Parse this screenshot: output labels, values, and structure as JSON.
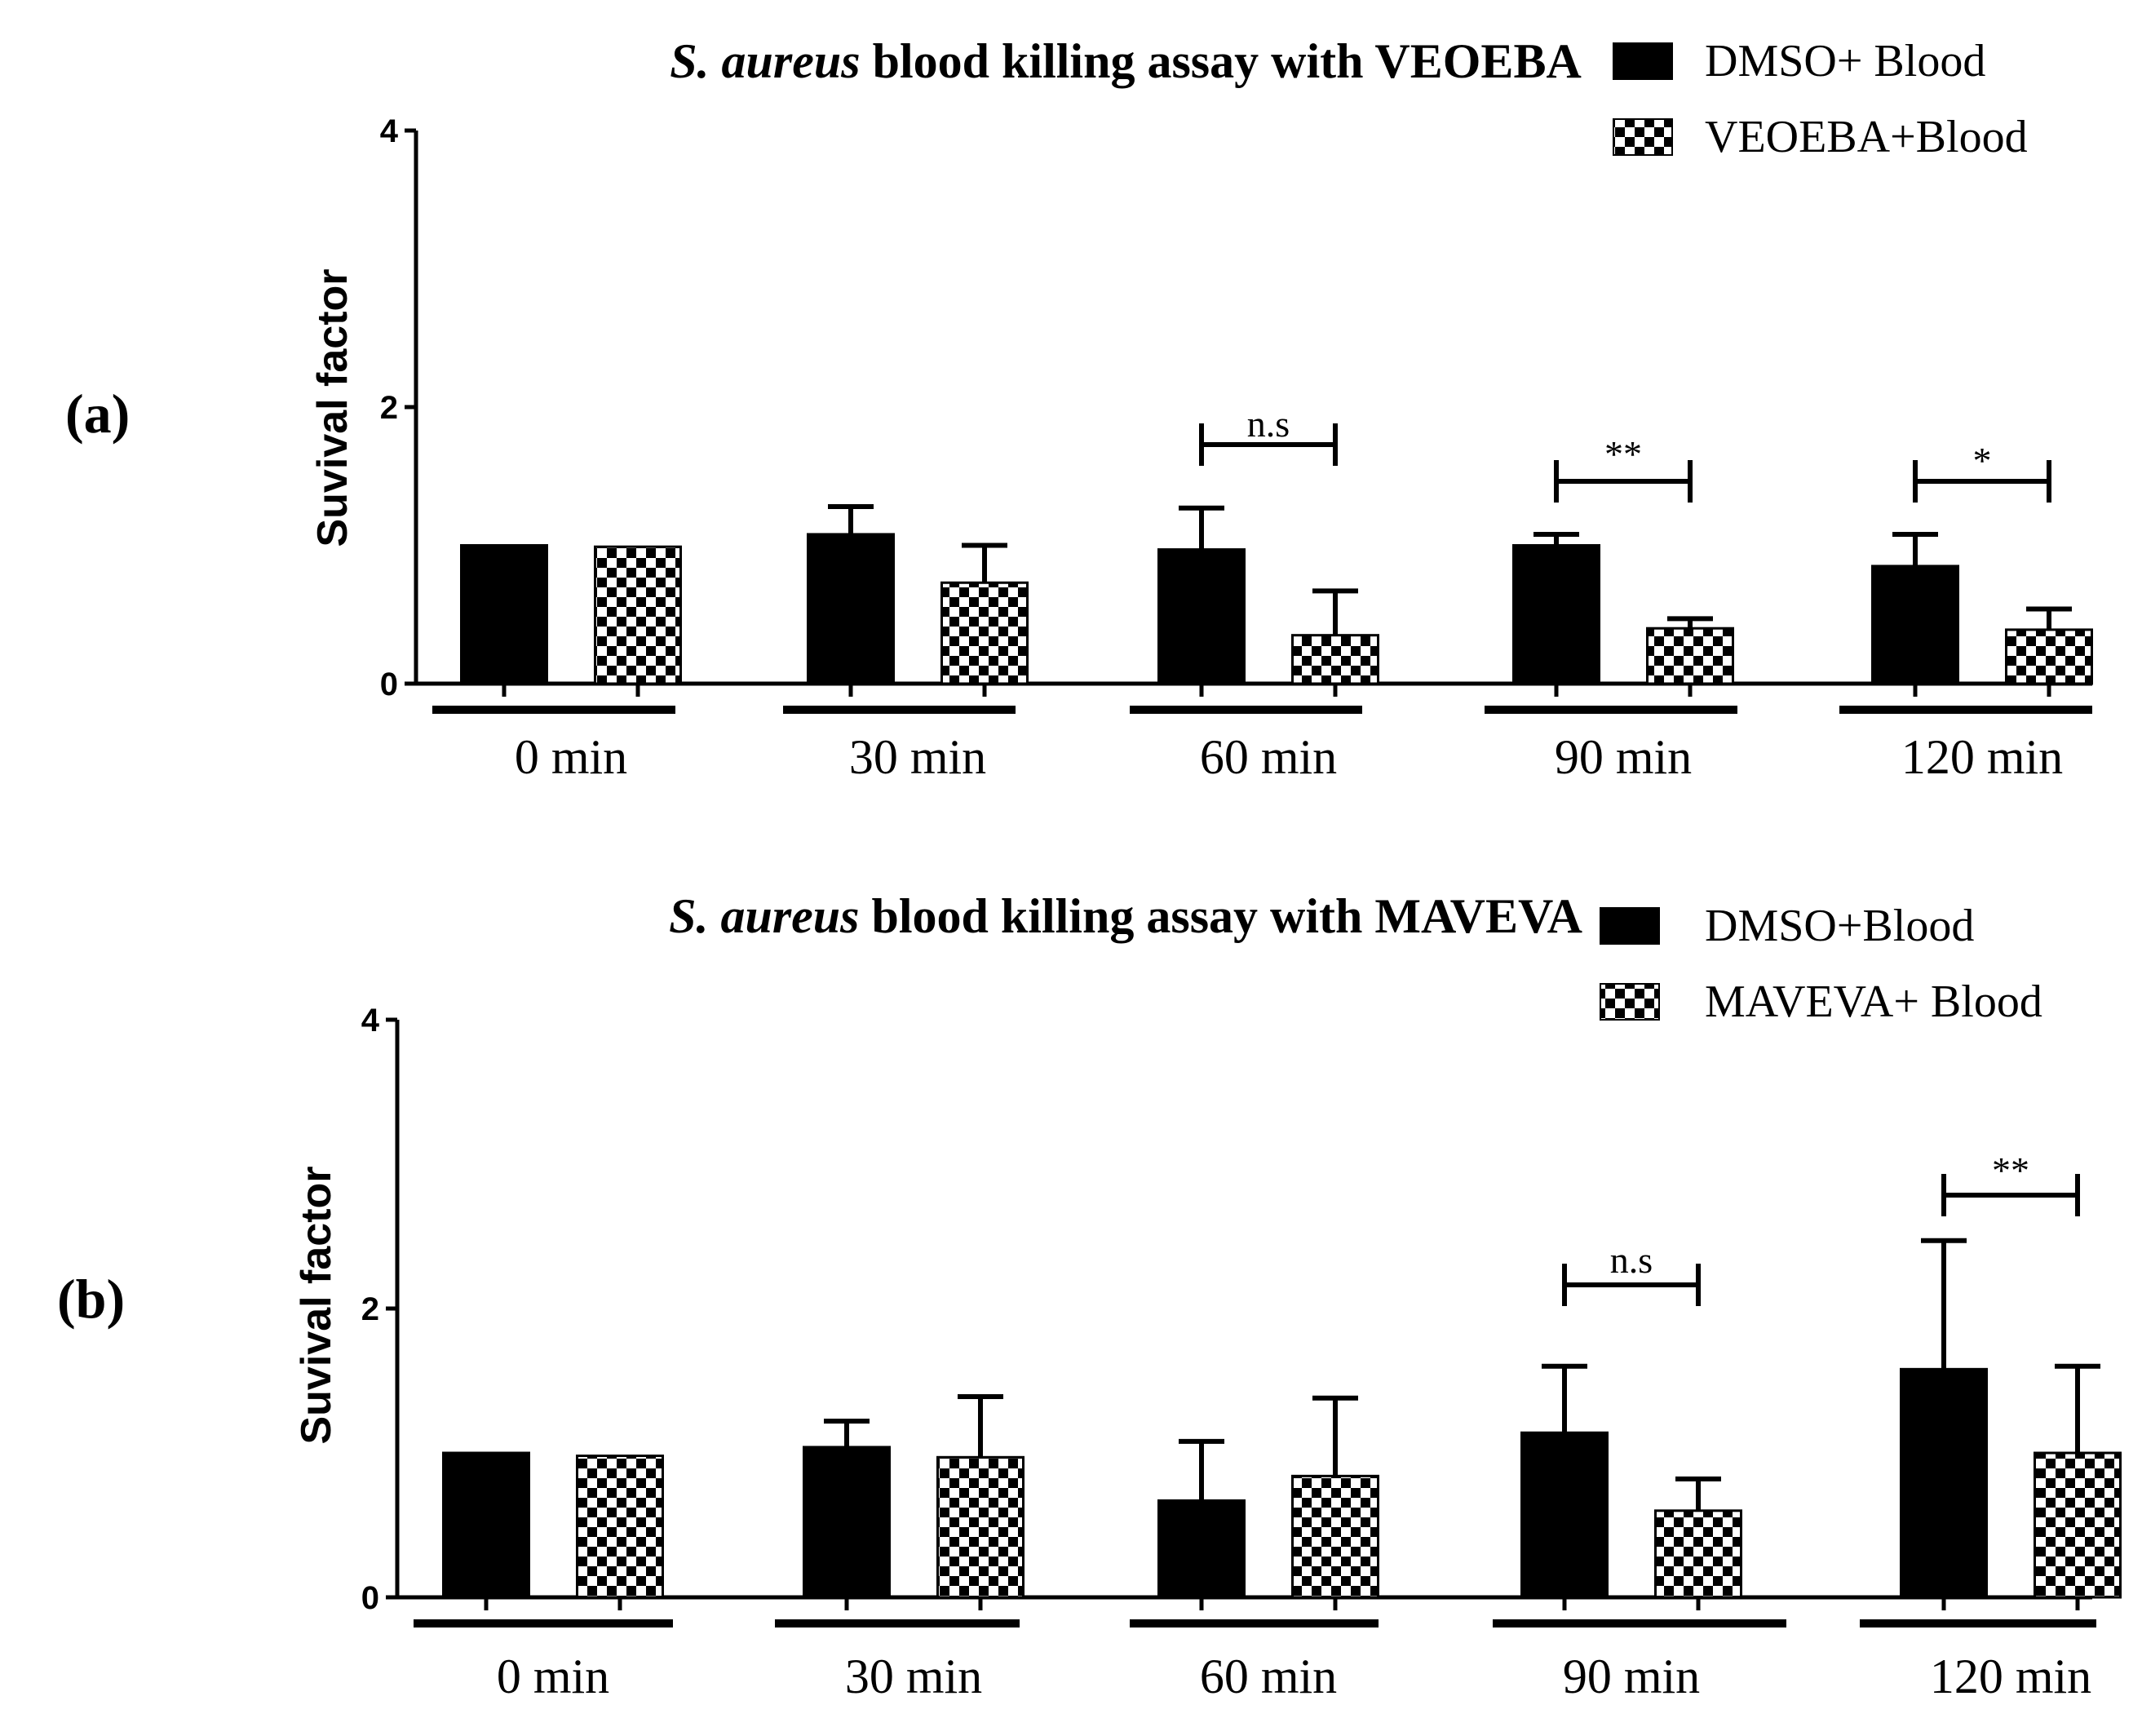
{
  "chart_data": [
    {
      "type": "bar",
      "panel_label_prefix": "(",
      "panel_label_letter": "a",
      "panel_label_suffix": ")",
      "title_italic": "S. aureus",
      "title_rest": " blood killing assay  with VEOEBA",
      "ylabel": "Suvival factor",
      "xlabel": "",
      "ylim": [
        0,
        4
      ],
      "yticks": [
        "0",
        "2",
        "4"
      ],
      "categories": [
        "0 min",
        "30 min",
        "60 min",
        "90 min",
        "120 min"
      ],
      "series": [
        {
          "name": "DMSO+ Blood",
          "pattern": "solid",
          "values": [
            1.0,
            1.08,
            0.97,
            1.0,
            0.85
          ],
          "errors": [
            0.0,
            0.2,
            0.3,
            0.08,
            0.23
          ]
        },
        {
          "name": "VEOEBA+Blood",
          "pattern": "checker",
          "values": [
            0.99,
            0.73,
            0.35,
            0.4,
            0.39
          ],
          "errors": [
            0.0,
            0.27,
            0.32,
            0.07,
            0.15
          ]
        }
      ],
      "significance": [
        {
          "category": "60 min",
          "label": "n.s"
        },
        {
          "category": "90 min",
          "label": "**"
        },
        {
          "category": "120 min",
          "label": "*"
        }
      ]
    },
    {
      "type": "bar",
      "panel_label_prefix": "(",
      "panel_label_letter": "b",
      "panel_label_suffix": ")",
      "title_italic": "S. aureus",
      "title_rest": " blood killing assay with MAVEVA",
      "ylabel": "Suvival factor",
      "xlabel": "",
      "ylim": [
        0,
        4
      ],
      "yticks": [
        "0",
        "2",
        "4"
      ],
      "categories": [
        "0 min",
        "30 min",
        "60 min",
        "90 min",
        "120 min"
      ],
      "series": [
        {
          "name": "DMSO+Blood",
          "pattern": "solid",
          "values": [
            1.0,
            1.04,
            0.67,
            1.14,
            1.58
          ],
          "errors": [
            0.0,
            0.18,
            0.41,
            0.46,
            0.89
          ]
        },
        {
          "name": "MAVEVA+ Blood",
          "pattern": "checker",
          "values": [
            0.98,
            0.97,
            0.84,
            0.6,
            1.0
          ],
          "errors": [
            0.0,
            0.42,
            0.54,
            0.22,
            0.6
          ]
        }
      ],
      "significance": [
        {
          "category": "90 min",
          "label": "n.s"
        },
        {
          "category": "120 min",
          "label": "**"
        }
      ]
    }
  ]
}
